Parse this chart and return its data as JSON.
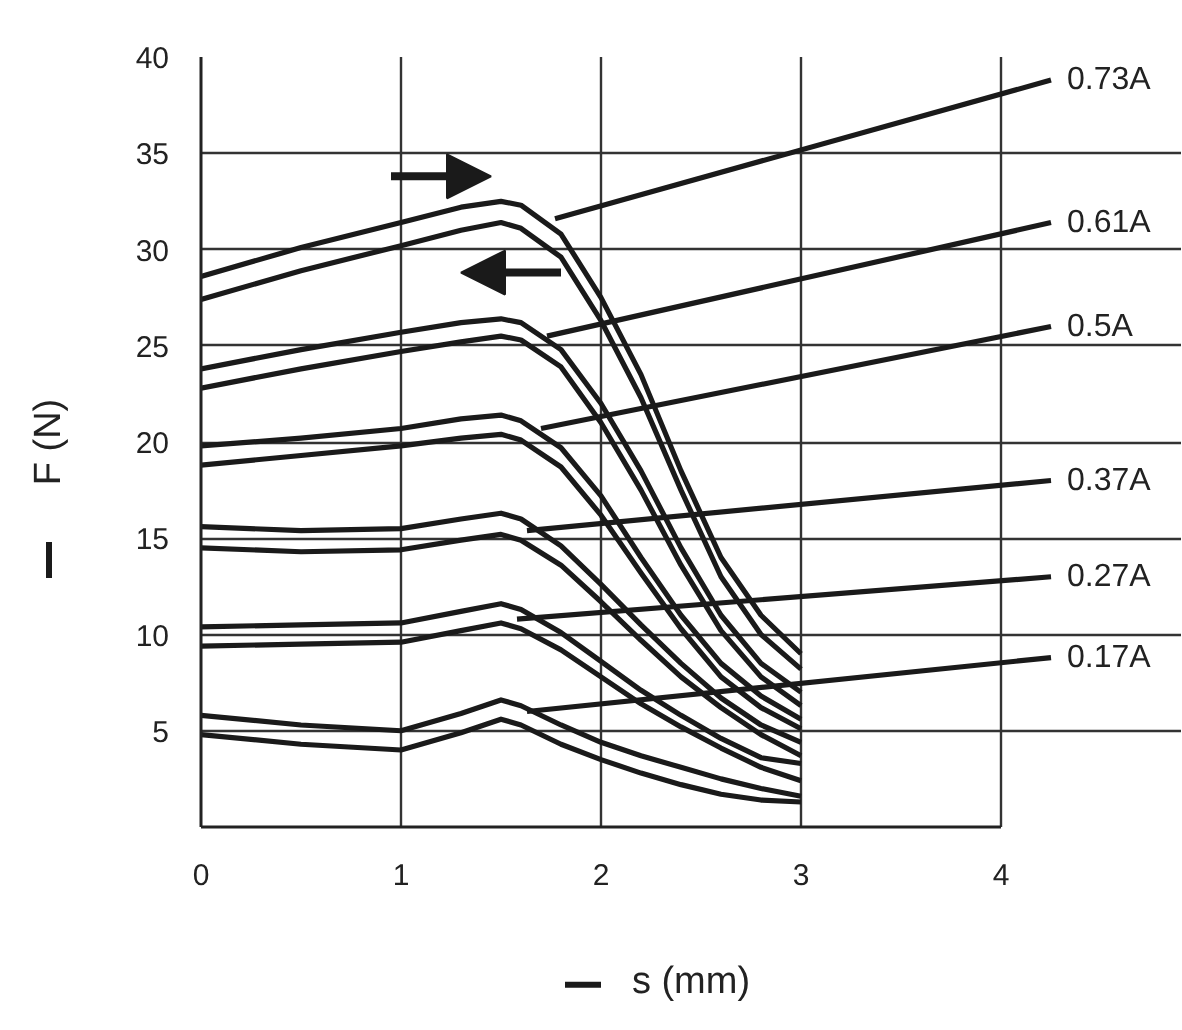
{
  "chart_data": {
    "type": "line",
    "xlabel": "s (mm)",
    "ylabel": "F (N)",
    "xlim": [
      0,
      4.9
    ],
    "xticks": [
      0,
      1,
      2,
      3,
      4
    ],
    "ylim": [
      0,
      40
    ],
    "yticks": [
      5,
      10,
      15,
      20,
      25,
      30,
      35,
      40
    ],
    "grid": true,
    "marker": "none",
    "line_style": "solid",
    "x": [
      0,
      0.5,
      1,
      1.3,
      1.5,
      1.6,
      1.8,
      2,
      2.2,
      2.4,
      2.6,
      2.8,
      3
    ],
    "series": [
      {
        "color": "#1a1a1a",
        "values": [
          28.6,
          30.1,
          31.4,
          32.2,
          32.5,
          32.3,
          30.8,
          27.5,
          23.5,
          18.5,
          14,
          11,
          9.0
        ]
      },
      {
        "color": "#1a1a1a",
        "values": [
          27.4,
          28.9,
          30.2,
          31.0,
          31.4,
          31.1,
          29.6,
          26.3,
          22.3,
          17.5,
          13,
          10,
          8.2
        ]
      },
      {
        "color": "#1a1a1a",
        "values": [
          23.8,
          24.8,
          25.7,
          26.2,
          26.4,
          26.2,
          24.8,
          22,
          18.5,
          14.5,
          11,
          8.5,
          7.0
        ]
      },
      {
        "color": "#1a1a1a",
        "values": [
          22.8,
          23.8,
          24.7,
          25.2,
          25.5,
          25.3,
          23.9,
          21,
          17.5,
          13.6,
          10.2,
          7.8,
          6.3
        ]
      },
      {
        "color": "#1a1a1a",
        "values": [
          19.8,
          20.2,
          20.7,
          21.2,
          21.4,
          21.1,
          19.7,
          17.2,
          14,
          11,
          8.5,
          6.8,
          5.6
        ]
      },
      {
        "color": "#1a1a1a",
        "values": [
          18.8,
          19.3,
          19.8,
          20.2,
          20.4,
          20.1,
          18.7,
          16.2,
          13.2,
          10.3,
          7.8,
          6.2,
          5.1
        ]
      },
      {
        "color": "#1a1a1a",
        "values": [
          15.6,
          15.4,
          15.5,
          16.0,
          16.3,
          16.0,
          14.6,
          12.6,
          10.5,
          8.5,
          6.7,
          5.3,
          4.4
        ]
      },
      {
        "color": "#1a1a1a",
        "values": [
          14.5,
          14.3,
          14.4,
          14.9,
          15.2,
          14.9,
          13.6,
          11.7,
          9.7,
          7.8,
          6.2,
          4.8,
          3.7
        ]
      },
      {
        "color": "#1a1a1a",
        "values": [
          10.4,
          10.5,
          10.6,
          11.2,
          11.6,
          11.3,
          10.1,
          8.6,
          7.1,
          5.8,
          4.6,
          3.6,
          3.3
        ]
      },
      {
        "color": "#1a1a1a",
        "values": [
          9.4,
          9.5,
          9.6,
          10.2,
          10.6,
          10.3,
          9.2,
          7.8,
          6.4,
          5.2,
          4.1,
          3.1,
          2.4
        ]
      },
      {
        "color": "#1a1a1a",
        "values": [
          5.8,
          5.3,
          5.0,
          5.9,
          6.6,
          6.3,
          5.3,
          4.4,
          3.7,
          3.1,
          2.5,
          2.0,
          1.6
        ]
      },
      {
        "color": "#1a1a1a",
        "values": [
          4.8,
          4.3,
          4.0,
          4.9,
          5.6,
          5.3,
          4.3,
          3.5,
          2.8,
          2.2,
          1.7,
          1.4,
          1.3
        ]
      },
      {
        "name": "0.73A",
        "color": "#1a1a1a",
        "x": [
          1.77,
          4.25
        ],
        "values": [
          31.6,
          38.8
        ]
      },
      {
        "name": "0.61A",
        "color": "#1a1a1a",
        "x": [
          1.73,
          4.25
        ],
        "values": [
          25.5,
          31.4
        ]
      },
      {
        "name": "0.5A",
        "color": "#1a1a1a",
        "x": [
          1.7,
          4.25
        ],
        "values": [
          20.7,
          26.0
        ]
      },
      {
        "name": "0.37A",
        "color": "#1a1a1a",
        "x": [
          1.63,
          4.25
        ],
        "values": [
          15.4,
          18.0
        ]
      },
      {
        "name": "0.27A",
        "color": "#1a1a1a",
        "x": [
          1.58,
          4.25
        ],
        "values": [
          10.8,
          13.0
        ]
      },
      {
        "name": "0.17A",
        "color": "#1a1a1a",
        "x": [
          1.63,
          4.25
        ],
        "values": [
          6.0,
          8.8
        ]
      }
    ]
  }
}
